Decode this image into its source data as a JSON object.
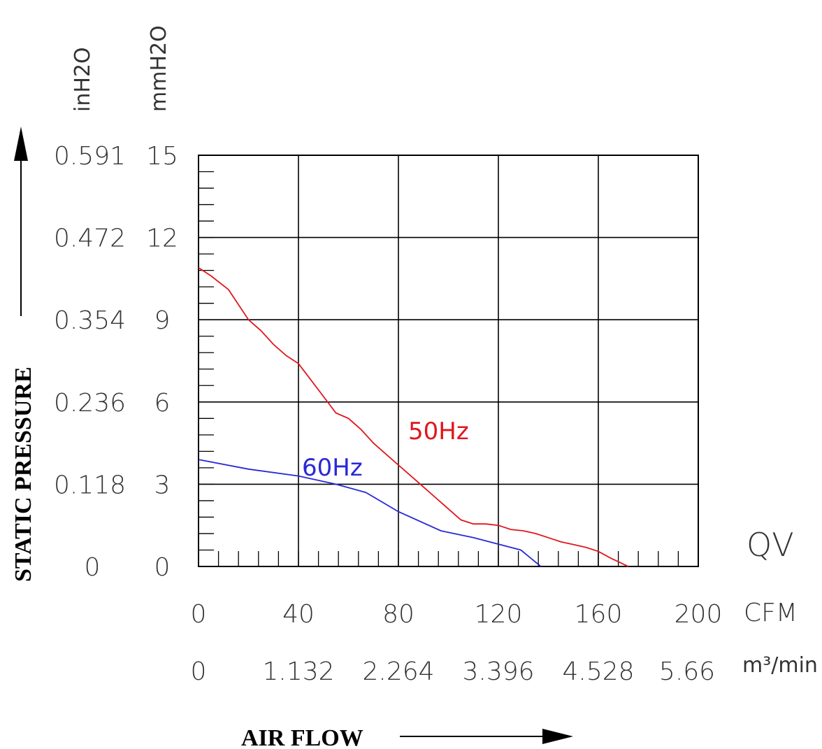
{
  "chart_data": {
    "type": "line",
    "title": "",
    "xlabel": "AIR FLOW",
    "ylabel": "STATIC PRESSURE",
    "corner_label": "QV",
    "x_primary": {
      "unit": "CFM",
      "ticks": [
        0,
        40,
        80,
        120,
        160,
        200
      ],
      "tick_labels": [
        "0",
        "40",
        "80",
        "120",
        "160",
        "200"
      ]
    },
    "x_secondary": {
      "unit": "m³/min",
      "tick_labels": [
        "0",
        "1.132",
        "2.264",
        "3.396",
        "4.528",
        "5.66"
      ]
    },
    "y_primary": {
      "unit": "mmH2O",
      "ticks": [
        0,
        3,
        6,
        9,
        12,
        15
      ],
      "tick_labels": [
        "0",
        "3",
        "6",
        "9",
        "12",
        "15"
      ]
    },
    "y_secondary": {
      "unit": "inH2O",
      "tick_labels": [
        "0",
        "0.118",
        "0.236",
        "0.354",
        "0.472",
        "0.591"
      ]
    },
    "xlim": [
      0,
      200
    ],
    "ylim": [
      0,
      15
    ],
    "grid": true,
    "series": [
      {
        "name": "50Hz",
        "color": "#e0161c",
        "x": [
          0,
          5,
          12,
          20,
          25,
          30,
          35,
          40,
          45,
          50,
          55,
          60,
          65,
          70,
          75,
          80,
          85,
          90,
          95,
          100,
          105,
          110,
          115,
          120,
          125,
          130,
          135,
          140,
          145,
          150,
          155,
          160,
          165,
          172
        ],
        "y": [
          10.9,
          10.6,
          10.1,
          9.0,
          8.6,
          8.1,
          7.7,
          7.4,
          6.8,
          6.2,
          5.6,
          5.4,
          5.0,
          4.5,
          4.1,
          3.7,
          3.3,
          2.9,
          2.5,
          2.1,
          1.7,
          1.55,
          1.55,
          1.5,
          1.35,
          1.3,
          1.2,
          1.05,
          0.9,
          0.8,
          0.7,
          0.55,
          0.3,
          0.0
        ]
      },
      {
        "name": "60Hz",
        "color": "#2929d6",
        "x": [
          0,
          20,
          40,
          55,
          67,
          80,
          97,
          110,
          129,
          137
        ],
        "y": [
          3.9,
          3.55,
          3.3,
          3.0,
          2.7,
          2.0,
          1.3,
          1.05,
          0.6,
          0.0
        ]
      }
    ]
  }
}
